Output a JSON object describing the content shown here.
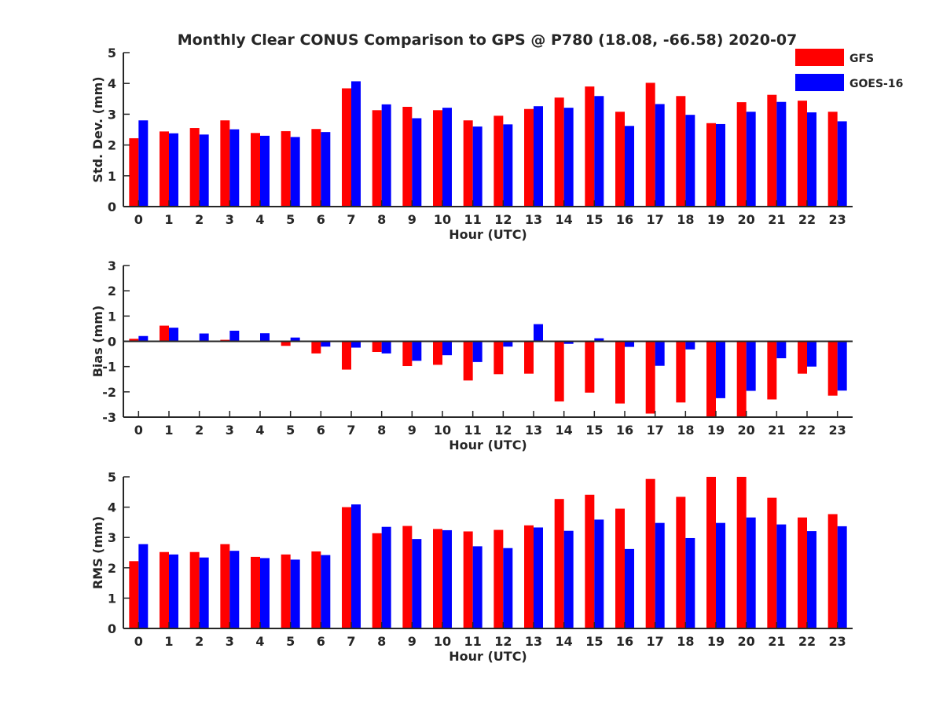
{
  "figure": {
    "title": "Monthly Clear CONUS Comparison to GPS @ P780 (18.08, -66.58) 2020-07",
    "colors": {
      "GFS": "#ff0000",
      "GOES-16": "#0000ff"
    },
    "legend": {
      "placement": "top-right",
      "entries": [
        "GFS",
        "GOES-16"
      ]
    }
  },
  "chart_data": [
    {
      "type": "bar",
      "title": "Monthly Clear CONUS Comparison to GPS @ P780 (18.08, -66.58) 2020-07",
      "xlabel": "Hour (UTC)",
      "ylabel": "Std. Dev. (mm)",
      "ylim": [
        0,
        5
      ],
      "yticks": [
        0,
        1,
        2,
        3,
        4,
        5
      ],
      "categories": [
        "0",
        "1",
        "2",
        "3",
        "4",
        "5",
        "6",
        "7",
        "8",
        "9",
        "10",
        "11",
        "12",
        "13",
        "14",
        "15",
        "16",
        "17",
        "18",
        "19",
        "20",
        "21",
        "22",
        "23"
      ],
      "series": [
        {
          "name": "GFS",
          "values": [
            2.22,
            2.44,
            2.55,
            2.8,
            2.39,
            2.45,
            2.52,
            3.84,
            3.13,
            3.24,
            3.13,
            2.8,
            2.95,
            3.17,
            3.54,
            3.9,
            3.08,
            4.02,
            3.59,
            2.71,
            3.39,
            3.63,
            3.44,
            3.08
          ]
        },
        {
          "name": "GOES-16",
          "values": [
            2.8,
            2.38,
            2.34,
            2.51,
            2.3,
            2.26,
            2.42,
            4.07,
            3.32,
            2.87,
            3.21,
            2.6,
            2.67,
            3.26,
            3.21,
            3.59,
            2.62,
            3.33,
            2.98,
            2.68,
            3.08,
            3.4,
            3.06,
            2.77
          ]
        }
      ]
    },
    {
      "type": "bar",
      "xlabel": "Hour (UTC)",
      "ylabel": "Bias (mm)",
      "ylim": [
        -3,
        3
      ],
      "yticks": [
        -3,
        -2,
        -1,
        0,
        1,
        2,
        3
      ],
      "categories": [
        "0",
        "1",
        "2",
        "3",
        "4",
        "5",
        "6",
        "7",
        "8",
        "9",
        "10",
        "11",
        "12",
        "13",
        "14",
        "15",
        "16",
        "17",
        "18",
        "19",
        "20",
        "21",
        "22",
        "23"
      ],
      "series": [
        {
          "name": "GFS",
          "values": [
            0.1,
            0.62,
            0.0,
            0.06,
            0.03,
            -0.18,
            -0.48,
            -1.12,
            -0.42,
            -0.98,
            -0.93,
            -1.55,
            -1.3,
            -1.28,
            -2.38,
            -2.03,
            -2.46,
            -2.86,
            -2.42,
            -3.0,
            -3.0,
            -2.3,
            -1.28,
            -2.15
          ]
        },
        {
          "name": "GOES-16",
          "values": [
            0.21,
            0.54,
            0.31,
            0.42,
            0.32,
            0.15,
            -0.21,
            -0.25,
            -0.48,
            -0.77,
            -0.55,
            -0.82,
            -0.21,
            0.68,
            -0.1,
            0.12,
            -0.22,
            -0.97,
            -0.32,
            -2.25,
            -1.96,
            -0.67,
            -1.0,
            -1.95
          ]
        }
      ]
    },
    {
      "type": "bar",
      "xlabel": "Hour (UTC)",
      "ylabel": "RMS (mm)",
      "ylim": [
        0,
        5
      ],
      "yticks": [
        0,
        1,
        2,
        3,
        4,
        5
      ],
      "categories": [
        "0",
        "1",
        "2",
        "3",
        "4",
        "5",
        "6",
        "7",
        "8",
        "9",
        "10",
        "11",
        "12",
        "13",
        "14",
        "15",
        "16",
        "17",
        "18",
        "19",
        "20",
        "21",
        "22",
        "23"
      ],
      "series": [
        {
          "name": "GFS",
          "values": [
            2.22,
            2.52,
            2.52,
            2.78,
            2.36,
            2.44,
            2.54,
            4.0,
            3.14,
            3.38,
            3.28,
            3.2,
            3.25,
            3.4,
            4.27,
            4.41,
            3.95,
            4.93,
            4.34,
            5.0,
            5.0,
            4.31,
            3.66,
            3.77
          ]
        },
        {
          "name": "GOES-16",
          "values": [
            2.78,
            2.44,
            2.34,
            2.56,
            2.32,
            2.27,
            2.42,
            4.09,
            3.35,
            2.95,
            3.24,
            2.71,
            2.65,
            3.33,
            3.22,
            3.59,
            2.62,
            3.48,
            2.98,
            3.48,
            3.66,
            3.43,
            3.21,
            3.37
          ]
        }
      ]
    }
  ]
}
